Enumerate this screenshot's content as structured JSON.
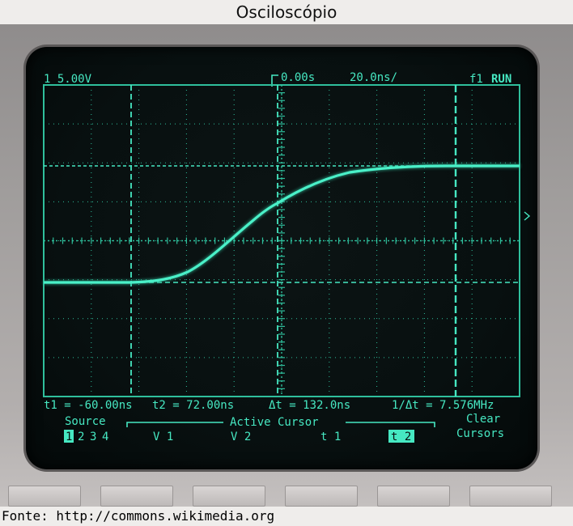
{
  "page": {
    "title": "Osciloscópio",
    "source_credit": "Fonte: http://commons.wikimedia.org"
  },
  "scope": {
    "status_bar": {
      "channel_scale": "1 5.00V",
      "time_delay": "0.00s",
      "time_base": "20.0ns/",
      "trigger": "f1",
      "run_state": "RUN"
    },
    "readout": {
      "t1": "t1 = -60.00ns",
      "t2": "t2 = 72.00ns",
      "delta_t": "Δt = 132.0ns",
      "inv_delta_t": "1/Δt = 7.576MHz"
    },
    "softkeys": {
      "source_label": "Source",
      "source_channels": [
        "1",
        "2",
        "3",
        "4"
      ],
      "active_cursor_label": "Active Cursor",
      "v1": "V 1",
      "v2": "V 2",
      "t1": "t 1",
      "t2": "t 2",
      "clear_line1": "Clear",
      "clear_line2": "Cursors"
    }
  },
  "colors": {
    "phosphor": "#46e8c2",
    "screen": "#081010",
    "bezel": "#a09d9c"
  }
}
